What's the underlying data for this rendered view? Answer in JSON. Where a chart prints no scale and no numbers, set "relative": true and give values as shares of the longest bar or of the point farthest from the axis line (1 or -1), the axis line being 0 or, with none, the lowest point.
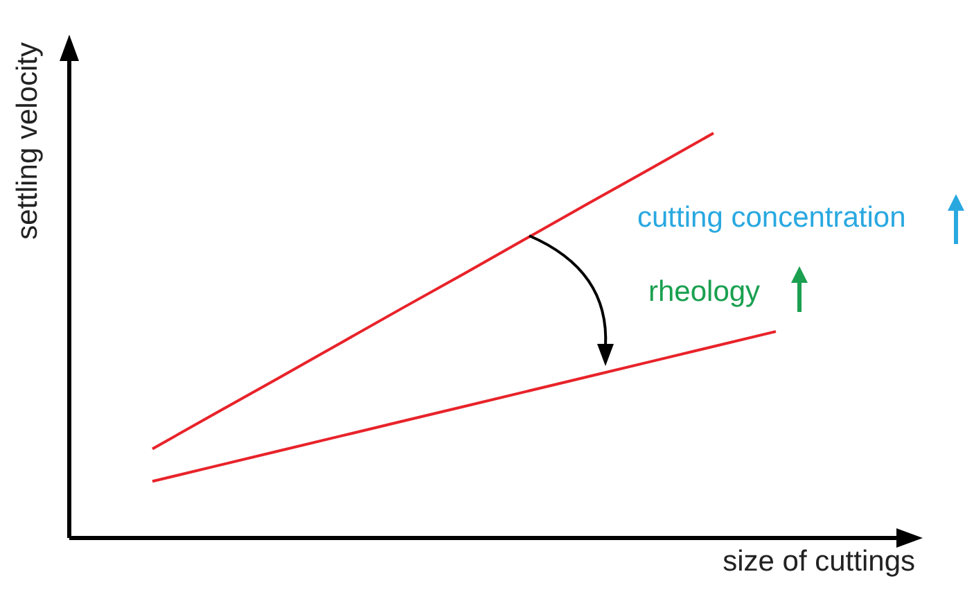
{
  "chart_data": {
    "type": "line",
    "relative": true,
    "xlabel": "size of cuttings",
    "ylabel": "settling velocity",
    "categories": [
      null,
      null,
      null,
      null,
      null,
      null,
      null,
      null,
      null,
      null,
      null
    ],
    "grid": false,
    "legend": false,
    "marker": "none",
    "line_style": "solid",
    "annotations": [
      "cutting concentration",
      "rheology"
    ],
    "series": [
      {
        "color": "#e8232a",
        "values": [
          0.22,
          0.307,
          0.393,
          0.48,
          0.567,
          0.653,
          0.74,
          0.827,
          0.913,
          1.0,
          null
        ]
      },
      {
        "color": "#e8232a",
        "values": [
          0.14,
          0.177,
          0.214,
          0.251,
          0.288,
          0.325,
          0.362,
          0.399,
          0.436,
          0.473,
          0.51
        ]
      }
    ]
  }
}
